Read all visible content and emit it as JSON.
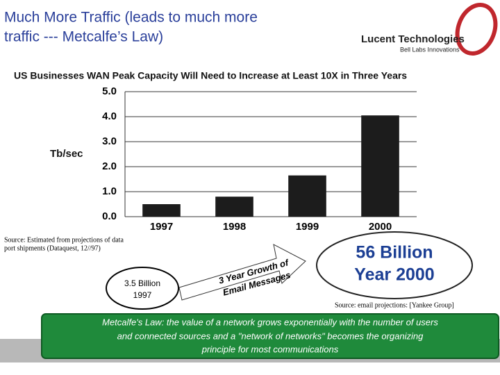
{
  "header": {
    "title_lines": [
      "Much More Traffic (leads to much more",
      "traffic --- Metcalfe’s Law)"
    ],
    "logo_name": "Lucent Technologies",
    "logo_tagline": "Bell Labs Innovations"
  },
  "chart_data": {
    "type": "bar",
    "title": "US Businesses WAN Peak Capacity Will Need to Increase at Least 10X in Three Years",
    "y_label": "Tb/sec",
    "categories": [
      "1997",
      "1998",
      "1999",
      "2000"
    ],
    "values": [
      0.5,
      0.8,
      1.65,
      4.05
    ],
    "color": "#1c1c1c",
    "ylim": [
      0,
      5
    ],
    "yticks": [
      {
        "value": 0,
        "label": "0.0"
      },
      {
        "value": 1,
        "label": "1.0"
      },
      {
        "value": 2,
        "label": "2.0"
      },
      {
        "value": 3,
        "label": "3.0"
      },
      {
        "value": 4,
        "label": "4.0"
      },
      {
        "value": 5,
        "label": "5.0"
      }
    ],
    "grid": true
  },
  "notes": {
    "source_chart": [
      "Source: Estimated from projections of data",
      "port shipments (Dataquest, 12//97)"
    ],
    "oval_1997": [
      "3.5 Billion",
      "1997"
    ],
    "arrow": [
      "3 Year Growth of",
      "Email Messages"
    ],
    "oval_2000": [
      "56 Billion",
      "Year 2000"
    ],
    "source_email": "Source: email projections: [Yankee Group]",
    "metcalfe": [
      "Metcalfe's Law: the value of a network grows exponentially  with the number  of users",
      "and connected sources and a \"network of networks\" becomes the organizing",
      "principle for most communications"
    ]
  }
}
